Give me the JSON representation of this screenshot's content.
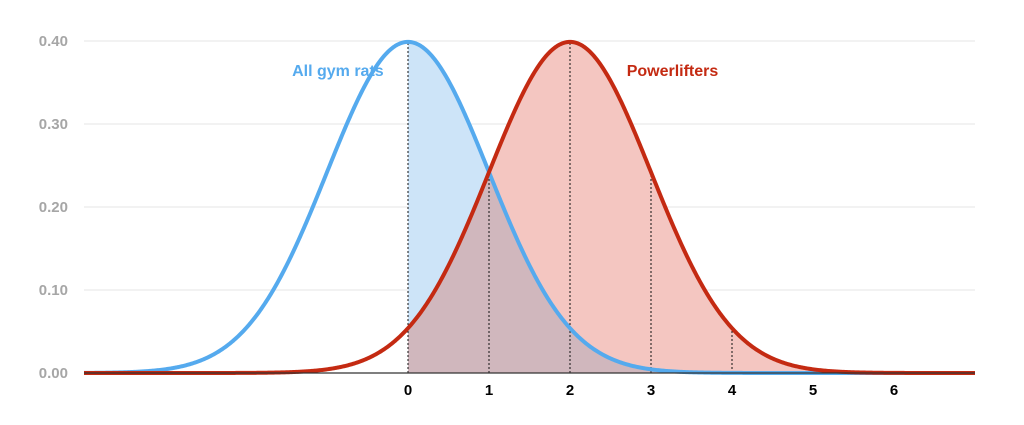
{
  "chart_data": {
    "type": "area",
    "title": "",
    "xlabel": "",
    "ylabel": "",
    "xlim": [
      -4,
      7
    ],
    "ylim": [
      0,
      0.4
    ],
    "grid": true,
    "y_ticks": [
      {
        "value": 0.0,
        "label": "0.00"
      },
      {
        "value": 0.1,
        "label": "0.10"
      },
      {
        "value": 0.2,
        "label": "0.20"
      },
      {
        "value": 0.3,
        "label": "0.30"
      },
      {
        "value": 0.4,
        "label": "0.40"
      }
    ],
    "x_ticks": [
      {
        "value": 0,
        "label": "0"
      },
      {
        "value": 1,
        "label": "1"
      },
      {
        "value": 2,
        "label": "2"
      },
      {
        "value": 3,
        "label": "3"
      },
      {
        "value": 4,
        "label": "4"
      },
      {
        "value": 5,
        "label": "5"
      },
      {
        "value": 6,
        "label": "6"
      }
    ],
    "series": [
      {
        "name": "All gym rats",
        "distribution": "normal",
        "mean": 0,
        "sd": 1,
        "color": "#55aaee",
        "fill_color": "#cde4f8",
        "shaded_from": 0,
        "shaded_to": 7,
        "label_anchor": {
          "x": -0.3,
          "y": 0.365
        }
      },
      {
        "name": "Powerlifters",
        "distribution": "normal",
        "mean": 2,
        "sd": 1,
        "color": "#c42a12",
        "fill_color": "#f4c6c1",
        "shaded_from": 0,
        "shaded_to": 7,
        "label_anchor": {
          "x": 2.7,
          "y": 0.365
        }
      }
    ],
    "overlap_fill_color": "#d0b7bd",
    "reference_lines": [
      {
        "x": 0,
        "series": "All gym rats"
      },
      {
        "x": 1,
        "series": "Powerlifters"
      },
      {
        "x": 2,
        "series": "Powerlifters"
      },
      {
        "x": 3,
        "series": "Powerlifters"
      },
      {
        "x": 4,
        "series": "Powerlifters"
      }
    ]
  }
}
